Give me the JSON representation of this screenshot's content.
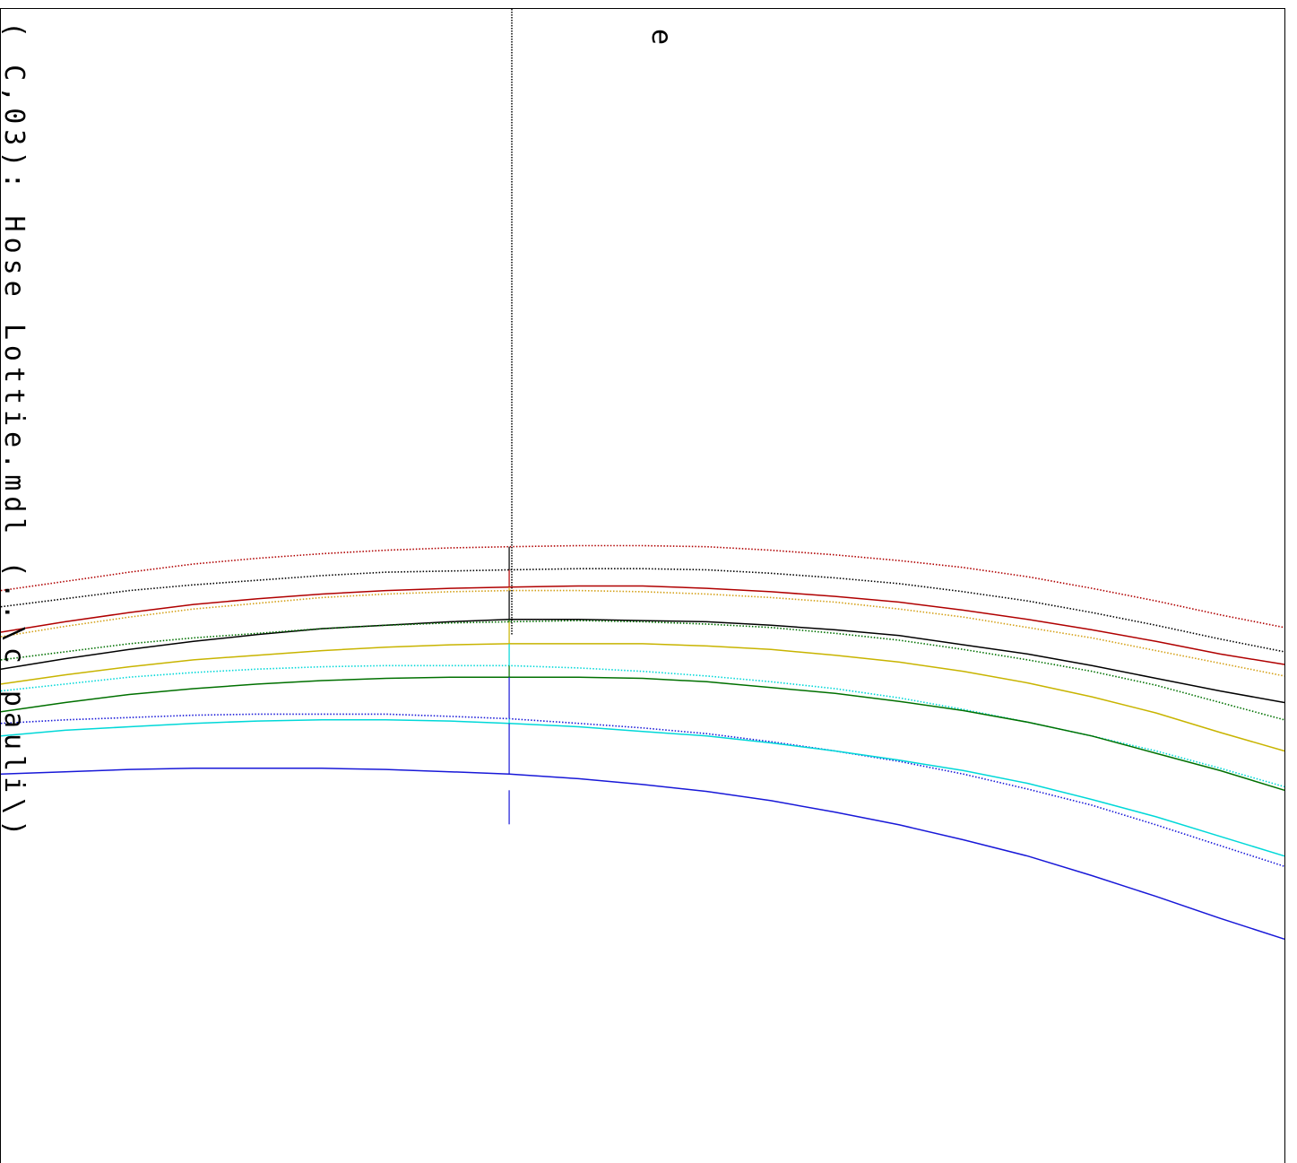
{
  "header": {
    "rotated_title": "( C,03): Hose Lottie.mdl  (..\\c_pauli\\)",
    "fragment_glyphs": "e"
  },
  "chart_data": {
    "type": "line",
    "title": "( C,03): Hose Lottie.mdl  (..\\c_pauli\\)",
    "xlabel": "",
    "ylabel": "",
    "xlim": [
      0,
      100
    ],
    "ylim": [
      0,
      100
    ],
    "grid": false,
    "legend": "none",
    "marker_x": 39.6,
    "x": [
      0,
      5,
      10,
      15,
      20,
      25,
      30,
      35,
      39.6,
      45,
      50,
      55,
      60,
      65,
      70,
      75,
      80,
      85,
      90,
      95,
      100
    ],
    "series": [
      {
        "color": "#b00000",
        "style": "dotted",
        "values": [
          49.6,
          50.4,
          51.2,
          51.9,
          52.4,
          52.8,
          53.1,
          53.3,
          53.4,
          53.5,
          53.5,
          53.4,
          53.1,
          52.7,
          52.2,
          51.6,
          50.8,
          49.8,
          48.7,
          47.5,
          46.4
        ]
      },
      {
        "color": "#000000",
        "style": "dotted",
        "values": [
          48.2,
          48.9,
          49.6,
          50.1,
          50.5,
          50.9,
          51.2,
          51.3,
          51.4,
          51.5,
          51.5,
          51.4,
          51.1,
          50.7,
          50.2,
          49.5,
          48.7,
          47.7,
          46.6,
          45.4,
          44.3
        ]
      },
      {
        "color": "#b00000",
        "style": "solid",
        "values": [
          46.0,
          46.9,
          47.7,
          48.4,
          48.9,
          49.3,
          49.6,
          49.8,
          49.9,
          50.0,
          50.0,
          49.8,
          49.5,
          49.1,
          48.6,
          47.9,
          47.1,
          46.2,
          45.2,
          44.1,
          43.2
        ]
      },
      {
        "color": "#d4a017",
        "style": "dotted",
        "values": [
          45.6,
          46.5,
          47.3,
          48.0,
          48.5,
          49.0,
          49.3,
          49.5,
          49.6,
          49.6,
          49.5,
          49.3,
          49.0,
          48.6,
          48.0,
          47.3,
          46.4,
          45.5,
          44.4,
          43.3,
          42.2
        ]
      },
      {
        "color": "#000000",
        "style": "solid",
        "values": [
          42.8,
          43.7,
          44.5,
          45.2,
          45.8,
          46.3,
          46.6,
          46.9,
          47.1,
          47.1,
          47.0,
          46.9,
          46.6,
          46.2,
          45.7,
          44.9,
          44.1,
          43.1,
          42.0,
          40.9,
          39.9
        ]
      },
      {
        "color": "#007000",
        "style": "dotted",
        "values": [
          43.6,
          44.3,
          45.0,
          45.5,
          45.9,
          46.3,
          46.6,
          46.8,
          46.9,
          47.0,
          46.9,
          46.7,
          46.4,
          45.9,
          45.3,
          44.5,
          43.6,
          42.6,
          41.4,
          39.9,
          38.4
        ]
      },
      {
        "color": "#c8b400",
        "style": "solid",
        "values": [
          41.5,
          42.3,
          43.0,
          43.6,
          44.0,
          44.4,
          44.7,
          44.9,
          45.0,
          45.0,
          45.0,
          44.8,
          44.5,
          44.0,
          43.4,
          42.6,
          41.6,
          40.4,
          39.0,
          37.3,
          35.7
        ]
      },
      {
        "color": "#00d8d8",
        "style": "dotted",
        "values": [
          40.9,
          41.5,
          42.1,
          42.5,
          42.8,
          43.0,
          43.1,
          43.1,
          43.1,
          42.9,
          42.6,
          42.2,
          41.7,
          41.1,
          40.3,
          39.3,
          38.2,
          37.0,
          35.7,
          34.2,
          32.6
        ]
      },
      {
        "color": "#007000",
        "style": "solid",
        "values": [
          39.1,
          39.9,
          40.6,
          41.1,
          41.5,
          41.8,
          42.0,
          42.1,
          42.1,
          42.1,
          42.0,
          41.7,
          41.2,
          40.7,
          40.0,
          39.2,
          38.2,
          37.0,
          35.5,
          34.0,
          32.3
        ]
      },
      {
        "color": "#1818d8",
        "style": "dotted",
        "values": [
          38.1,
          38.4,
          38.6,
          38.8,
          38.9,
          38.9,
          38.9,
          38.7,
          38.5,
          38.1,
          37.7,
          37.2,
          36.5,
          35.7,
          34.8,
          33.7,
          32.4,
          31.0,
          29.3,
          27.5,
          25.7
        ]
      },
      {
        "color": "#00d8d8",
        "style": "solid",
        "values": [
          37.0,
          37.5,
          37.8,
          38.1,
          38.3,
          38.4,
          38.4,
          38.3,
          38.1,
          37.8,
          37.4,
          37.0,
          36.4,
          35.7,
          34.9,
          34.0,
          32.9,
          31.5,
          30.0,
          28.3,
          26.6
        ]
      },
      {
        "color": "#1818d8",
        "style": "solid",
        "values": [
          33.7,
          33.9,
          34.1,
          34.2,
          34.2,
          34.2,
          34.1,
          33.9,
          33.7,
          33.3,
          32.8,
          32.2,
          31.4,
          30.4,
          29.3,
          28.0,
          26.6,
          24.9,
          23.1,
          21.2,
          19.4
        ]
      }
    ]
  }
}
